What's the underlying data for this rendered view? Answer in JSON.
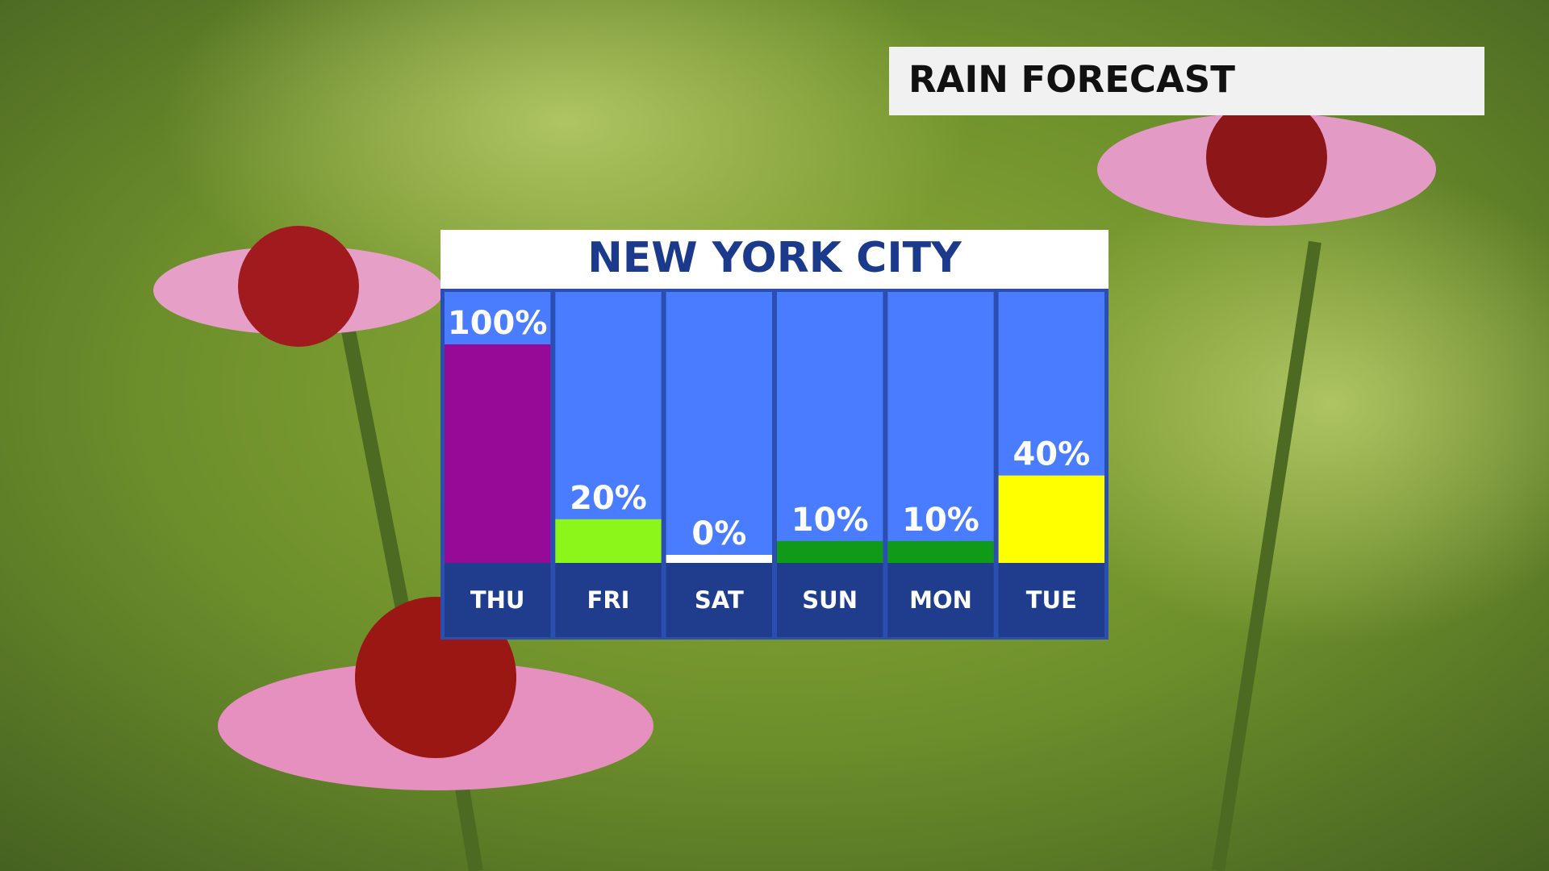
{
  "header": "RAIN FORECAST",
  "chart_data": {
    "type": "bar",
    "title": "NEW YORK CITY",
    "categories": [
      "THU",
      "FRI",
      "SAT",
      "SUN",
      "MON",
      "TUE"
    ],
    "values": [
      100,
      20,
      0,
      10,
      10,
      40
    ],
    "value_labels": [
      "100%",
      "20%",
      "0%",
      "10%",
      "10%",
      "40%"
    ],
    "colors": [
      "#950a96",
      "#8cf51a",
      "#ffffff",
      "#0f9a17",
      "#0f9a17",
      "#ffff00"
    ],
    "ylim": [
      0,
      100
    ]
  }
}
